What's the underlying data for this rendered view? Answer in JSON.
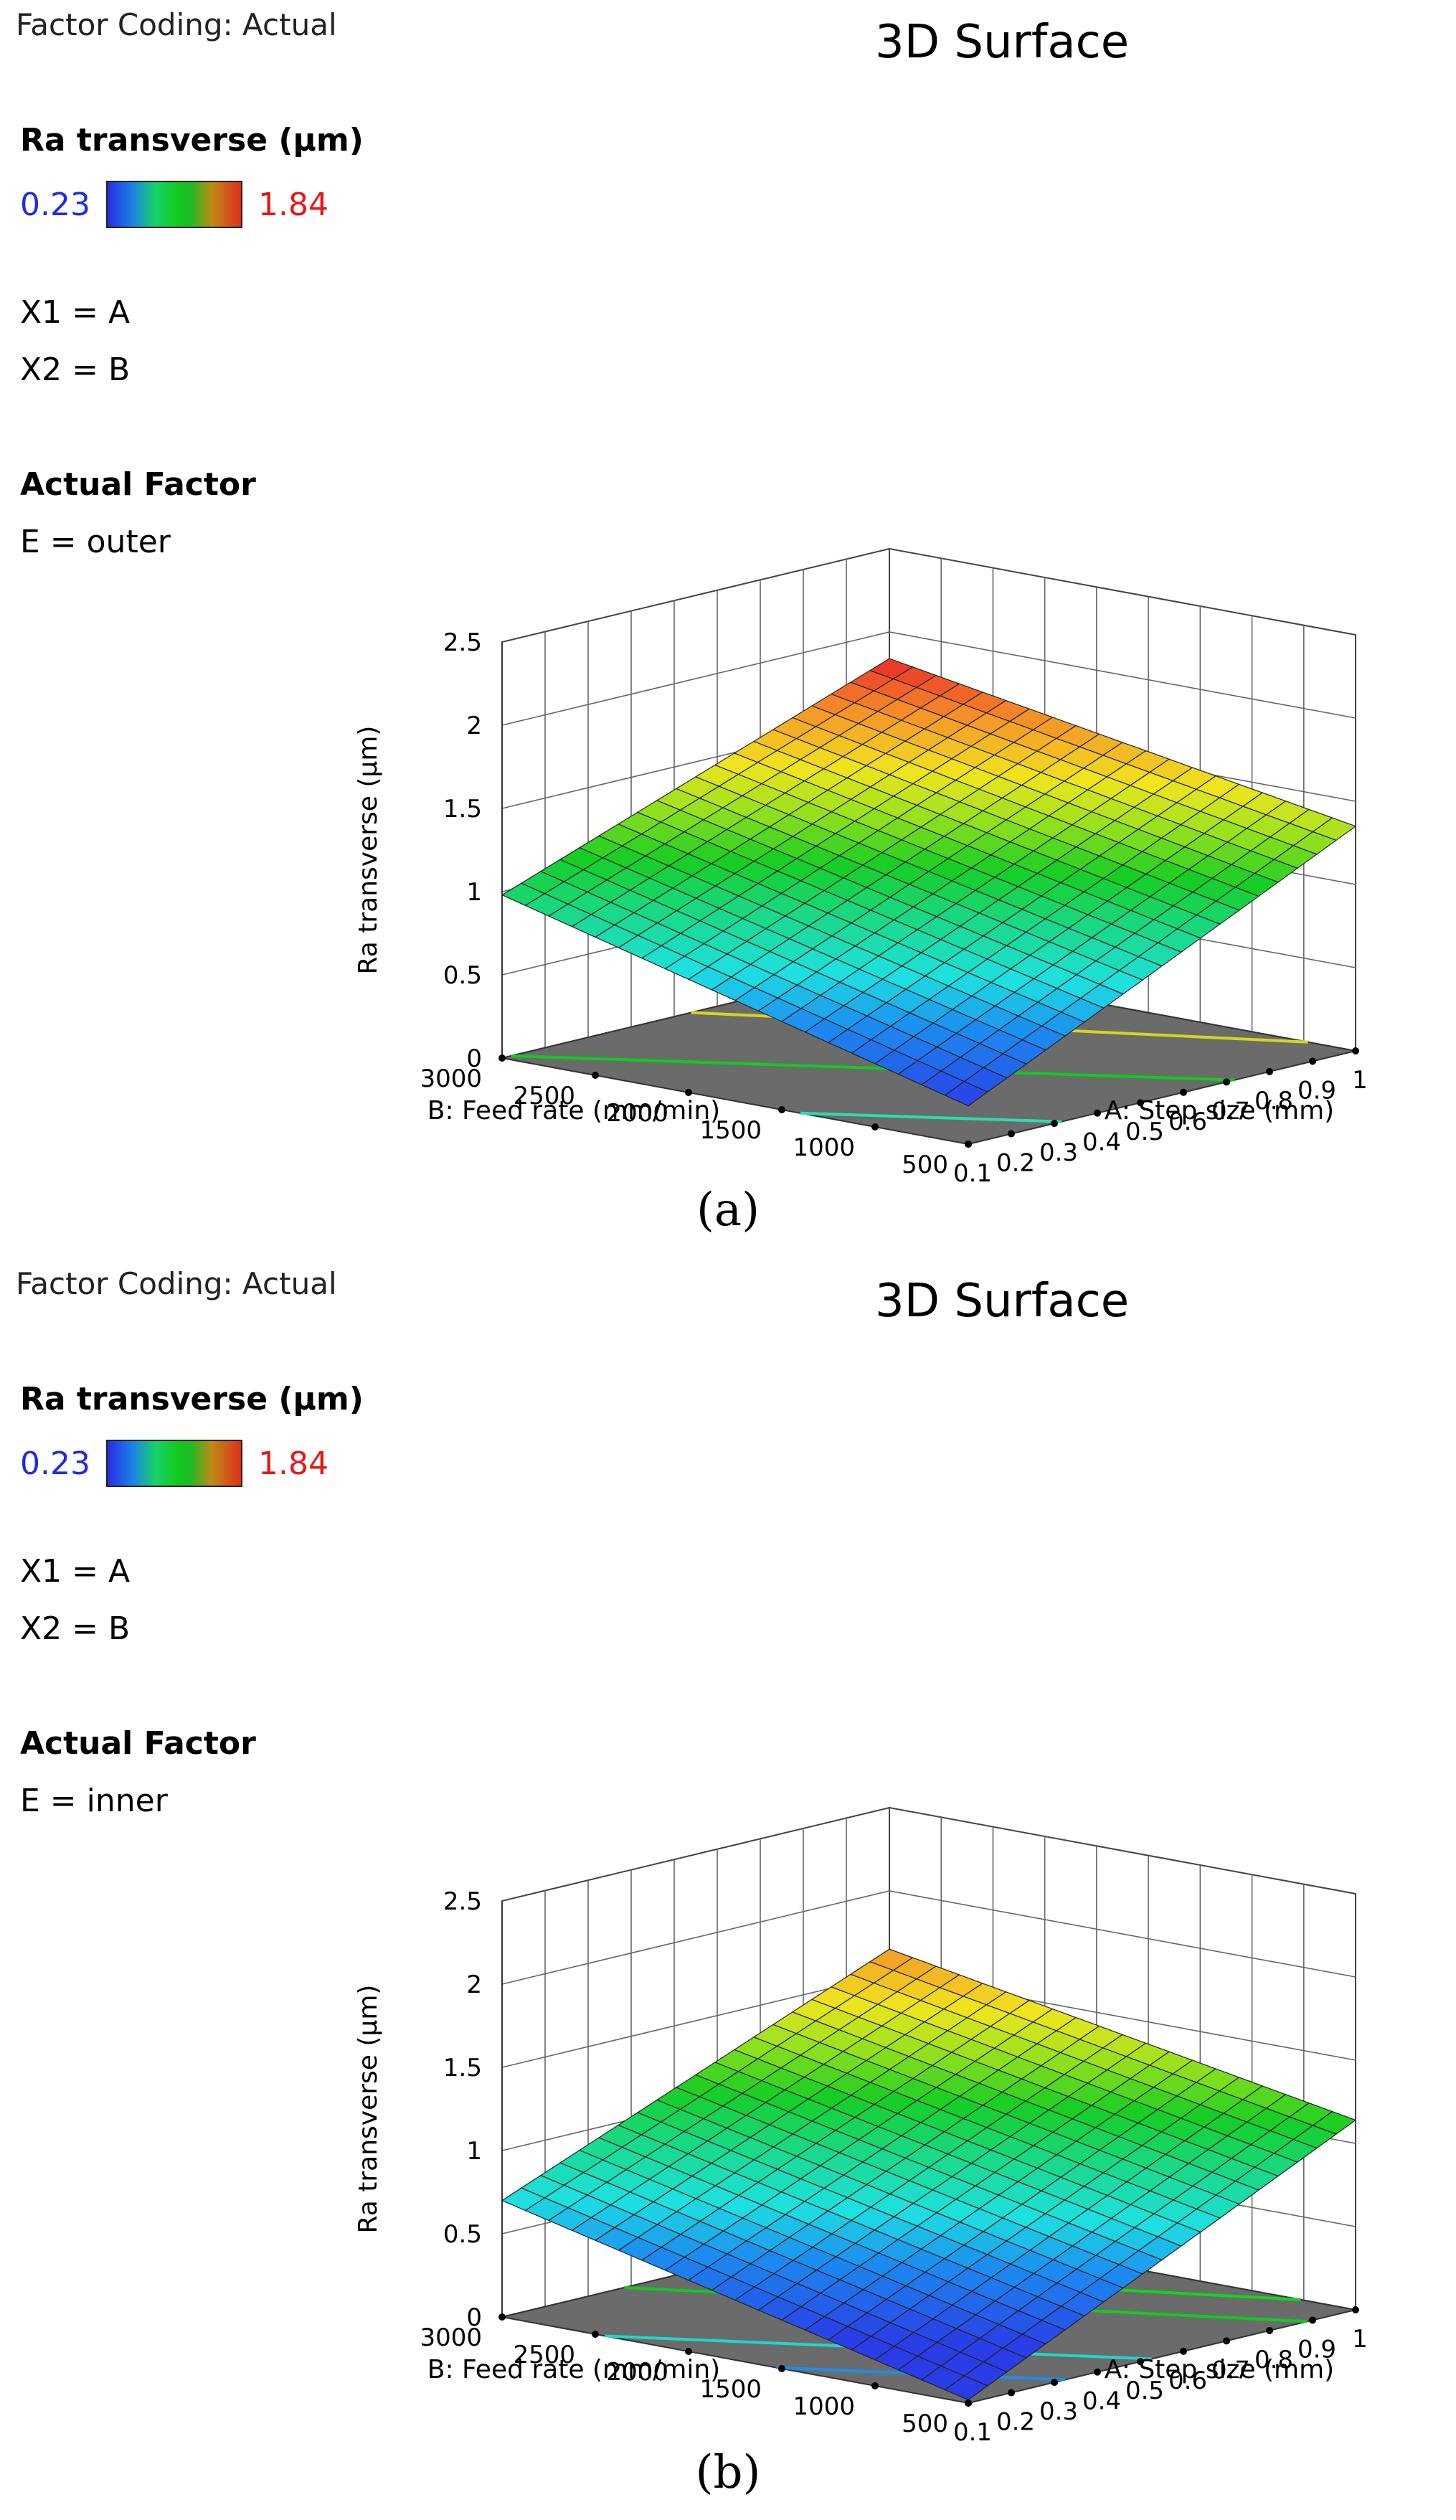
{
  "chart_data": [
    {
      "type": "surface3d",
      "panel": "a",
      "title": "3D Surface",
      "factor_coding": "Factor Coding: Actual",
      "response_name": "Ra transverse (µm)",
      "color_scale": {
        "min_label": "0.23",
        "max_label": "1.84",
        "min": 0.23,
        "max": 1.84
      },
      "x1_label": "X1 = A",
      "x2_label": "X2 = B",
      "actual_factor_title": "Actual Factor",
      "actual_factor_value": "E = outer",
      "xlabel": "A: Step size (mm)",
      "ylabel": "B: Feed rate (mm/min)",
      "zlabel": "Ra transverse (µm)",
      "x_ticks": [
        "0.1",
        "0.2",
        "0.3",
        "0.4",
        "0.5",
        "0.6",
        "0.7",
        "0.8",
        "0.9",
        "1"
      ],
      "y_ticks": [
        "500",
        "1000",
        "1500",
        "2000",
        "2500",
        "3000"
      ],
      "z_ticks": [
        "0",
        "0.5",
        "1",
        "1.5",
        "2",
        "2.5"
      ],
      "xlim": [
        0.1,
        1
      ],
      "ylim": [
        500,
        3000
      ],
      "zlim": [
        0,
        2.5
      ],
      "surface_corners": {
        "A0.1_B500": 0.23,
        "A1_B500": 1.35,
        "A0.1_B3000": 0.98,
        "A1_B3000": 1.84
      },
      "contours": [
        {
          "level": 0.5,
          "color": "#25e0ad"
        },
        {
          "level": 1.0,
          "color": "#10cc20"
        },
        {
          "level": 1.4,
          "color": "#d6d61a"
        },
        {
          "level": 1.65,
          "color": "#f2961a"
        },
        {
          "level": 1.82,
          "color": "#e52222"
        }
      ],
      "caption": "(a)"
    },
    {
      "type": "surface3d",
      "panel": "b",
      "title": "3D Surface",
      "factor_coding": "Factor Coding: Actual",
      "response_name": "Ra transverse (µm)",
      "color_scale": {
        "min_label": "0.23",
        "max_label": "1.84",
        "min": 0.23,
        "max": 1.84
      },
      "x1_label": "X1 = A",
      "x2_label": "X2 = B",
      "actual_factor_title": "Actual Factor",
      "actual_factor_value": "E = inner",
      "xlabel": "A: Step size (mm)",
      "ylabel": "B: Feed rate (mm/min)",
      "zlabel": "Ra transverse (µm)",
      "x_ticks": [
        "0.1",
        "0.2",
        "0.3",
        "0.4",
        "0.5",
        "0.6",
        "0.7",
        "0.8",
        "0.9",
        "1"
      ],
      "y_ticks": [
        "500",
        "1000",
        "1500",
        "2000",
        "2500",
        "3000"
      ],
      "z_ticks": [
        "0",
        "0.5",
        "1",
        "1.5",
        "2",
        "2.5"
      ],
      "xlim": [
        0.1,
        1
      ],
      "ylim": [
        500,
        3000
      ],
      "zlim": [
        0,
        2.5
      ],
      "surface_corners": {
        "A0.1_B500": 0.02,
        "A1_B500": 1.14,
        "A0.1_B3000": 0.7,
        "A1_B3000": 1.65
      },
      "contours": [
        {
          "level": 0.3,
          "color": "#1c8cf0"
        },
        {
          "level": 0.55,
          "color": "#1fd6cf"
        },
        {
          "level": 1.0,
          "color": "#10cc20"
        },
        {
          "level": 1.2,
          "color": "#12d818"
        },
        {
          "level": 1.55,
          "color": "#f2961a"
        }
      ],
      "caption": "(b)"
    }
  ]
}
